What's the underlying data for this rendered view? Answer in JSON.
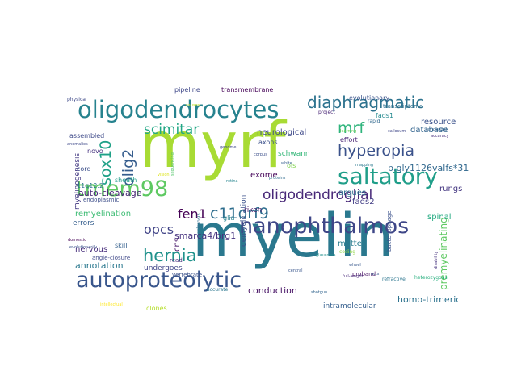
{
  "word_cloud": {
    "words": [
      {
        "text": "myrf",
        "color": "#a8db34"
      },
      {
        "text": "myelin",
        "color": "#2a788e"
      },
      {
        "text": "oligodendrocytes",
        "color": "#26828e"
      },
      {
        "text": "nanophthalmos",
        "color": "#3f4788"
      },
      {
        "text": "autoproteolytic",
        "color": "#39568c"
      },
      {
        "text": "saltatory",
        "color": "#1f9e89"
      },
      {
        "text": "tmem98",
        "color": "#5ec962"
      },
      {
        "text": "oligodendroglial",
        "color": "#482878"
      },
      {
        "text": "diaphragmatic",
        "color": "#2c728e"
      },
      {
        "text": "hyperopia",
        "color": "#3b528b"
      },
      {
        "text": "hernia",
        "color": "#20928c"
      },
      {
        "text": "c11orf9",
        "color": "#2e6e8e"
      },
      {
        "text": "scimitar",
        "color": "#22a785"
      },
      {
        "text": "mrf",
        "color": "#2fb47c"
      },
      {
        "text": "sox10",
        "color": "#1fa187"
      },
      {
        "text": "olig2",
        "color": "#365d8d"
      },
      {
        "text": "fen1",
        "color": "#440154"
      },
      {
        "text": "opcs",
        "color": "#414487"
      },
      {
        "text": "p.gly1126valfs*31",
        "color": "#31688e"
      },
      {
        "text": "auto-cleavage",
        "color": "#482575"
      },
      {
        "text": "smarca4/brg1",
        "color": "#46327e"
      },
      {
        "text": "premyelinating",
        "color": "#5ec962"
      },
      {
        "text": "annotation",
        "color": "#2a788e"
      },
      {
        "text": "conduction",
        "color": "#471365"
      },
      {
        "text": "homo-trimeric",
        "color": "#2c728e"
      },
      {
        "text": "neurological",
        "color": "#3e4989"
      },
      {
        "text": "exome",
        "color": "#450559"
      },
      {
        "text": "riken",
        "color": "#481a6c"
      },
      {
        "text": "fads2",
        "color": "#433e85"
      },
      {
        "text": "database",
        "color": "#32648e"
      },
      {
        "text": "resource",
        "color": "#3b528b"
      },
      {
        "text": "argues",
        "color": "#2d708e"
      },
      {
        "text": "rungs",
        "color": "#453882"
      },
      {
        "text": "spinal",
        "color": "#25ab82"
      },
      {
        "text": "matter",
        "color": "#287c8e"
      },
      {
        "text": "remyelination",
        "color": "#3dbc74"
      },
      {
        "text": "nervous",
        "color": "#472d7b"
      },
      {
        "text": "undergoes",
        "color": "#404688"
      },
      {
        "text": "intramolecular",
        "color": "#355f8d"
      },
      {
        "text": "evolutionary",
        "color": "#3a548c"
      },
      {
        "text": "transmembrane",
        "color": "#440256"
      },
      {
        "text": "pipeline",
        "color": "#3f4889"
      },
      {
        "text": "assembled",
        "color": "#3e4a89"
      },
      {
        "text": "axons",
        "color": "#3c508b"
      },
      {
        "text": "demyelination",
        "color": "#3b518b"
      },
      {
        "text": "schwann",
        "color": "#35b779"
      },
      {
        "text": "effort",
        "color": "#482173"
      },
      {
        "text": "fads1",
        "color": "#23898e"
      },
      {
        "text": "transcriptome",
        "color": "#2d708e"
      },
      {
        "text": "novo",
        "color": "#46337f"
      },
      {
        "text": "sheath",
        "color": "#1e9c89"
      },
      {
        "text": "myelinogenesis",
        "color": "#443a83"
      },
      {
        "text": "endoplasmic",
        "color": "#3d4e8a"
      },
      {
        "text": "errors",
        "color": "#355e8d"
      },
      {
        "text": "cord",
        "color": "#3c4f8a"
      },
      {
        "text": "11q12.2",
        "color": "#2c738e"
      },
      {
        "text": "cns",
        "color": "#48186a"
      },
      {
        "text": "glia",
        "color": "#26818e"
      },
      {
        "text": "skill",
        "color": "#34608d"
      },
      {
        "text": "read",
        "color": "#472c7a"
      },
      {
        "text": "clones",
        "color": "#b5de2b"
      },
      {
        "text": "ols",
        "color": "#7fd34e"
      },
      {
        "text": "angle-closure",
        "color": "#3f4889"
      },
      {
        "text": "vertebrate",
        "color": "#3b528b"
      },
      {
        "text": "proband",
        "color": "#471063"
      },
      {
        "text": "refractive",
        "color": "#2b758e"
      },
      {
        "text": "physical",
        "color": "#3e4989"
      },
      {
        "text": "project",
        "color": "#482475"
      },
      {
        "text": "rapid",
        "color": "#31688e"
      },
      {
        "text": "callosum",
        "color": "#3f4788"
      },
      {
        "text": "congenital",
        "color": "#33638d"
      },
      {
        "text": "accuracy",
        "color": "#472f7d"
      },
      {
        "text": "bacteriophage",
        "color": "#3b518b"
      },
      {
        "text": "accurate",
        "color": "#2a768e"
      },
      {
        "text": "sclerosis",
        "color": "#2e6d8e"
      },
      {
        "text": "mapping",
        "color": "#2a788e"
      },
      {
        "text": "corpus",
        "color": "#3c4f8a"
      },
      {
        "text": "genome",
        "color": "#3e4a89"
      },
      {
        "text": "central",
        "color": "#39568c"
      },
      {
        "text": "glaucoma",
        "color": "#218f8d"
      },
      {
        "text": "disability",
        "color": "#46327e"
      },
      {
        "text": "shotgun",
        "color": "#32658e"
      },
      {
        "text": "coding",
        "color": "#8ed645"
      },
      {
        "text": "wheel",
        "color": "#38588c"
      },
      {
        "text": "full-length",
        "color": "#482979"
      },
      {
        "text": "learning",
        "color": "#6ece58"
      },
      {
        "text": "white",
        "color": "#355f8d"
      },
      {
        "text": "acts",
        "color": "#3a548c"
      },
      {
        "text": "heterozygous",
        "color": "#29af7f"
      },
      {
        "text": "intellectual",
        "color": "#fde725"
      },
      {
        "text": "anomalies",
        "color": "#3e4989"
      },
      {
        "text": "domestic",
        "color": "#440154"
      },
      {
        "text": "evolutionarily",
        "color": "#3b528b"
      },
      {
        "text": "vision",
        "color": "#dde318"
      },
      {
        "text": "retina",
        "color": "#25848e"
      },
      {
        "text": "causes",
        "color": "#c2df23"
      },
      {
        "text": "proteins",
        "color": "#2f6c8e"
      },
      {
        "text": "sequencing",
        "color": "#52c569"
      }
    ]
  }
}
